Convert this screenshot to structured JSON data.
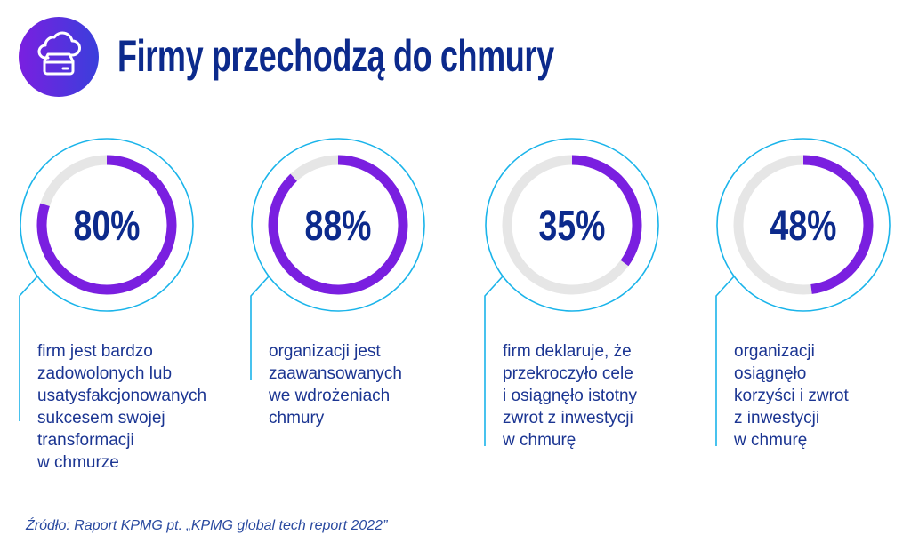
{
  "header": {
    "title": "Firmy przechodzą do chmury",
    "icon": "cloud-server-icon"
  },
  "colors": {
    "accent": "#7a1fe0",
    "track": "#e6e6e6",
    "outline": "#1ab4ea",
    "text": "#0c2a8c"
  },
  "chart_data": {
    "type": "donut",
    "items": [
      {
        "value": 80,
        "label": "80%",
        "description": "firm jest bardzo\nzadowolonych lub\nusatysfakcjonowanych\nsukcesem swojej\ntransformacji\nw chmurze"
      },
      {
        "value": 88,
        "label": "88%",
        "description": "organizacji jest\nzaawansowanych\nwe wdrożeniach\nchmury"
      },
      {
        "value": 35,
        "label": "35%",
        "description": "firm deklaruje, że\nprzekroczyło cele\ni osiągnęło istotny\nzwrot z inwestycji\nw chmurę"
      },
      {
        "value": 48,
        "label": "48%",
        "description": "organizacji\nosiągnęło\nkorzyści i zwrot\nz inwestycji\nw chmurę"
      }
    ]
  },
  "footer": {
    "source": "Źródło: Raport KPMG pt. „KPMG global tech report 2022”"
  }
}
